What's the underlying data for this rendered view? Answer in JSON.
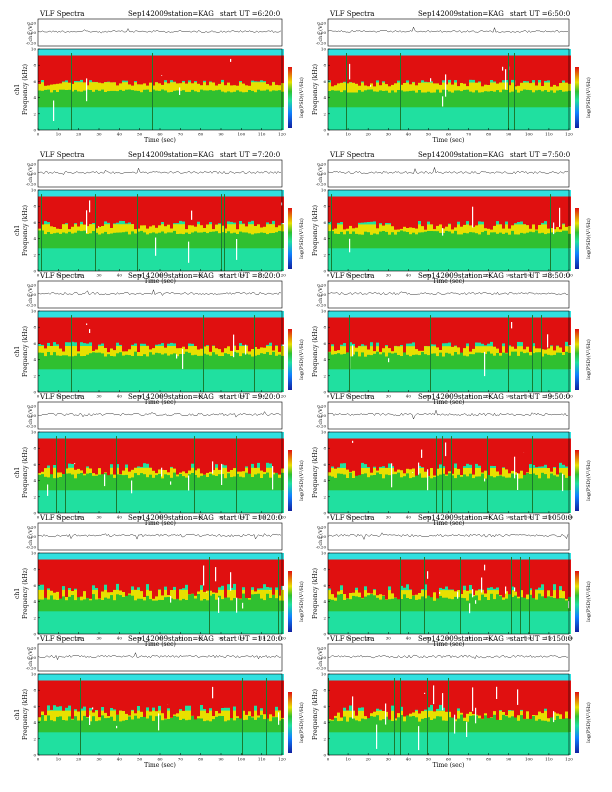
{
  "chart_data": [
    {
      "type": "heatmap",
      "header": {
        "title": "VLF Spectra",
        "date": "Sep142009",
        "station": "station=KAG",
        "start": "start UT =6:20:0"
      },
      "channel_label": "ch1",
      "waveform_ylabel": "ch1 (V)",
      "waveform_ticks": [
        "0.20",
        "0.00",
        "-0.20"
      ],
      "ylabel": "Frequency (kHz)",
      "yticks": [
        0,
        2,
        4,
        6,
        8,
        10
      ],
      "ylim": [
        0,
        10
      ],
      "xlabel": "Time (sec)",
      "xticks": [
        0,
        10,
        20,
        30,
        40,
        50,
        60,
        70,
        80,
        90,
        100,
        110,
        120
      ],
      "xlim": [
        0,
        120
      ],
      "colorbar_label": "log(PSD)(V²/Hz)",
      "intensity": 0.3
    },
    {
      "type": "heatmap",
      "header": {
        "title": "VLF Spectra",
        "date": "Sep142009",
        "station": "station=KAG",
        "start": "start UT =6:50:0"
      },
      "channel_label": "",
      "waveform_ylabel": "ch1 (V)",
      "waveform_ticks": [
        "0.20",
        "0.00",
        "-0.20"
      ],
      "ylabel": "Frequency (kHz)",
      "yticks": [
        0,
        2,
        4,
        6,
        8,
        10
      ],
      "ylim": [
        0,
        10
      ],
      "xlabel": "Time (sec)",
      "xticks": [
        0,
        10,
        20,
        30,
        40,
        50,
        60,
        70,
        80,
        90,
        100,
        110,
        120
      ],
      "xlim": [
        0,
        120
      ],
      "colorbar_label": "log(PSD)(V²/Hz)",
      "intensity": 0.34
    },
    {
      "type": "heatmap",
      "header": {
        "title": "VLF Spectra",
        "date": "Sep142009",
        "station": "station=KAG",
        "start": "start UT =7:20:0"
      },
      "channel_label": "ch1",
      "waveform_ylabel": "ch1 (V)",
      "waveform_ticks": [
        "0.20",
        "0.00",
        "-0.20"
      ],
      "ylabel": "Frequency (kHz)",
      "yticks": [
        0,
        2,
        4,
        6,
        8,
        10
      ],
      "ylim": [
        0,
        10
      ],
      "xlabel": "Time (sec)",
      "xticks": [
        0,
        10,
        20,
        30,
        40,
        50,
        60,
        70,
        80,
        90,
        100,
        110,
        120
      ],
      "xlim": [
        0,
        120
      ],
      "colorbar_label": "log(PSD)(V²/Hz)",
      "intensity": 0.42
    },
    {
      "type": "heatmap",
      "header": {
        "title": "VLF Spectra",
        "date": "Sep142009",
        "station": "station=KAG",
        "start": "start UT =7:50:0"
      },
      "channel_label": "",
      "waveform_ylabel": "ch1 (V)",
      "waveform_ticks": [
        "0.20",
        "0.00",
        "-0.20"
      ],
      "ylabel": "Frequency (kHz)",
      "yticks": [
        0,
        2,
        4,
        6,
        8,
        10
      ],
      "ylim": [
        0,
        10
      ],
      "xlabel": "Time (sec)",
      "xticks": [
        0,
        10,
        20,
        30,
        40,
        50,
        60,
        70,
        80,
        90,
        100,
        110,
        120
      ],
      "xlim": [
        0,
        120
      ],
      "colorbar_label": "log(PSD)(V²/Hz)",
      "intensity": 0.45
    },
    {
      "type": "heatmap",
      "header": {
        "title": "VLF Spectra",
        "date": "Sep142009",
        "station": "station=KAG",
        "start": "start UT =8:20:0"
      },
      "channel_label": "ch1",
      "waveform_ylabel": "ch1 (V)",
      "waveform_ticks": [
        "0.20",
        "0.00",
        "-0.20"
      ],
      "ylabel": "Frequency (kHz)",
      "yticks": [
        0,
        2,
        4,
        6,
        8,
        10
      ],
      "ylim": [
        0,
        10
      ],
      "xlabel": "Time (sec)",
      "xticks": [
        0,
        10,
        20,
        30,
        40,
        50,
        60,
        70,
        80,
        90,
        100,
        110,
        120
      ],
      "xlim": [
        0,
        120
      ],
      "colorbar_label": "log(PSD)(V²/Hz)",
      "intensity": 0.52
    },
    {
      "type": "heatmap",
      "header": {
        "title": "VLF Spectra",
        "date": "Sep142009",
        "station": "station=KAG",
        "start": "start UT =8:50:0"
      },
      "channel_label": "",
      "waveform_ylabel": "ch1 (V)",
      "waveform_ticks": [
        "0.20",
        "0.00",
        "-0.20"
      ],
      "ylabel": "Frequency (kHz)",
      "yticks": [
        0,
        2,
        4,
        6,
        8,
        10
      ],
      "ylim": [
        0,
        10
      ],
      "xlabel": "Time (sec)",
      "xticks": [
        0,
        10,
        20,
        30,
        40,
        50,
        60,
        70,
        80,
        90,
        100,
        110,
        120
      ],
      "xlim": [
        0,
        120
      ],
      "colorbar_label": "log(PSD)(V²/Hz)",
      "intensity": 0.55
    },
    {
      "type": "heatmap",
      "header": {
        "title": "VLF Spectra",
        "date": "Sep142009",
        "station": "station=KAG",
        "start": "start UT =9:20:0"
      },
      "channel_label": "ch1",
      "waveform_ylabel": "ch1 (V)",
      "waveform_ticks": [
        "0.20",
        "0.00",
        "-0.20"
      ],
      "ylabel": "Frequency (kHz)",
      "yticks": [
        0,
        2,
        4,
        6,
        8,
        10
      ],
      "ylim": [
        0,
        10
      ],
      "xlabel": "Time (sec)",
      "xticks": [
        0,
        10,
        20,
        30,
        40,
        50,
        60,
        70,
        80,
        90,
        100,
        110,
        120
      ],
      "xlim": [
        0,
        120
      ],
      "colorbar_label": "log(PSD)(V²/Hz)",
      "intensity": 0.62
    },
    {
      "type": "heatmap",
      "header": {
        "title": "VLF Spectra",
        "date": "Sep142009",
        "station": "station=KAG",
        "start": "start UT =9:50:0"
      },
      "channel_label": "",
      "waveform_ylabel": "ch1 (V)",
      "waveform_ticks": [
        "0.20",
        "0.00",
        "-0.20"
      ],
      "ylabel": "Frequency (kHz)",
      "yticks": [
        0,
        2,
        4,
        6,
        8,
        10
      ],
      "ylim": [
        0,
        10
      ],
      "xlabel": "Time (sec)",
      "xticks": [
        0,
        10,
        20,
        30,
        40,
        50,
        60,
        70,
        80,
        90,
        100,
        110,
        120
      ],
      "xlim": [
        0,
        120
      ],
      "colorbar_label": "log(PSD)(V²/Hz)",
      "intensity": 0.65
    },
    {
      "type": "heatmap",
      "header": {
        "title": "VLF Spectra",
        "date": "Sep142009",
        "station": "station=KAG",
        "start": "start UT =1020:0"
      },
      "channel_label": "ch1",
      "waveform_ylabel": "ch1 (V)",
      "waveform_ticks": [
        "0.20",
        "0.00",
        "-0.20"
      ],
      "ylabel": "Frequency (kHz)",
      "yticks": [
        0,
        2,
        4,
        6,
        8,
        10
      ],
      "ylim": [
        0,
        10
      ],
      "xlabel": "Time (sec)",
      "xticks": [
        0,
        10,
        20,
        30,
        40,
        50,
        60,
        70,
        80,
        90,
        100,
        110,
        120
      ],
      "xlim": [
        0,
        120
      ],
      "colorbar_label": "log(PSD)(V²/Hz)",
      "intensity": 0.75
    },
    {
      "type": "heatmap",
      "header": {
        "title": "VLF Spectra",
        "date": "Sep142009",
        "station": "station=KAG",
        "start": "start UT =1050:0"
      },
      "channel_label": "",
      "waveform_ylabel": "ch1 (V)",
      "waveform_ticks": [
        "0.20",
        "0.00",
        "-0.20"
      ],
      "ylabel": "Frequency (kHz)",
      "yticks": [
        0,
        2,
        4,
        6,
        8,
        10
      ],
      "ylim": [
        0,
        10
      ],
      "xlabel": "Time (sec)",
      "xticks": [
        0,
        10,
        20,
        30,
        40,
        50,
        60,
        70,
        80,
        90,
        100,
        110,
        120
      ],
      "xlim": [
        0,
        120
      ],
      "colorbar_label": "log(PSD)(V²/Hz)",
      "intensity": 0.78
    },
    {
      "type": "heatmap",
      "header": {
        "title": "VLF Spectra",
        "date": "Sep142009",
        "station": "station=KAG",
        "start": "start UT =1120:0"
      },
      "channel_label": "ch1",
      "waveform_ylabel": "ch1 (V)",
      "waveform_ticks": [
        "0.20",
        "0.00",
        "-0.20"
      ],
      "ylabel": "Frequency (kHz)",
      "yticks": [
        0,
        2,
        4,
        6,
        8,
        10
      ],
      "ylim": [
        0,
        10
      ],
      "xlabel": "Time (sec)",
      "xticks": [
        0,
        10,
        20,
        30,
        40,
        50,
        60,
        70,
        80,
        90,
        100,
        110,
        120
      ],
      "xlim": [
        0,
        120
      ],
      "colorbar_label": "log(PSD)(V²/Hz)",
      "intensity": 0.72
    },
    {
      "type": "heatmap",
      "header": {
        "title": "VLF Spectra",
        "date": "Sep142009",
        "station": "station=KAG",
        "start": "start UT =1150:0"
      },
      "channel_label": "",
      "waveform_ylabel": "ch1 (V)",
      "waveform_ticks": [
        "0.20",
        "0.00",
        "-0.20"
      ],
      "ylabel": "Frequency (kHz)",
      "yticks": [
        0,
        2,
        4,
        6,
        8,
        10
      ],
      "ylim": [
        0,
        10
      ],
      "xlabel": "Time (sec)",
      "xticks": [
        0,
        10,
        20,
        30,
        40,
        50,
        60,
        70,
        80,
        90,
        100,
        110,
        120
      ],
      "xlim": [
        0,
        120
      ],
      "colorbar_label": "log(PSD)(V²/Hz)",
      "intensity": 0.74
    }
  ],
  "colors": {
    "low": "#1020a0",
    "mid": "#20e0a0",
    "green": "#30c030",
    "yellow": "#e8e000",
    "high": "#e01010",
    "white": "#ffffff",
    "cyan": "#30e0e0"
  }
}
